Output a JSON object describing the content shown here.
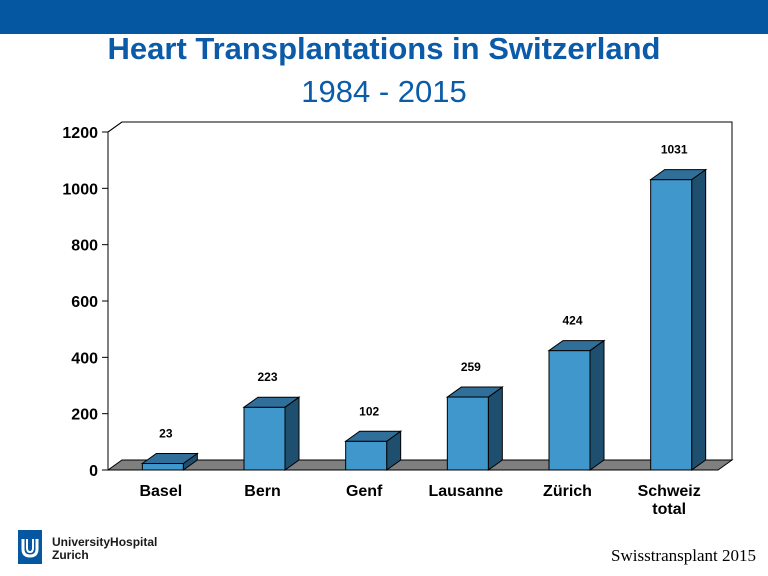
{
  "header": {
    "title": "Heart Transplantations in Switzerland",
    "subtitle": "1984 - 2015"
  },
  "chart_data": {
    "type": "bar",
    "categories": [
      "Basel",
      "Bern",
      "Genf",
      "Lausanne",
      "Zürich",
      "Schweiz total"
    ],
    "values": [
      23,
      223,
      102,
      259,
      424,
      1031
    ],
    "title": "Heart Transplantations in Switzerland",
    "subtitle": "1984 - 2015",
    "xlabel": "",
    "ylabel": "",
    "ylim": [
      0,
      1200
    ],
    "yticks": [
      "0",
      "200",
      "400",
      "600",
      "800",
      "1000",
      "1200"
    ],
    "grid": false,
    "legend": "none",
    "style": "3d-column",
    "colors": {
      "bar_front": "#3f97cc",
      "bar_top": "#2f6f9a",
      "bar_side": "#1f4f6f",
      "floor": "#7f7f7f"
    }
  },
  "footer": {
    "logo_line1": "UniversityHospital",
    "logo_line2": "Zurich",
    "source": "Swisstransplant 2015"
  },
  "colors": {
    "header_bar": "#0457a0",
    "title": "#0b5ba8"
  }
}
